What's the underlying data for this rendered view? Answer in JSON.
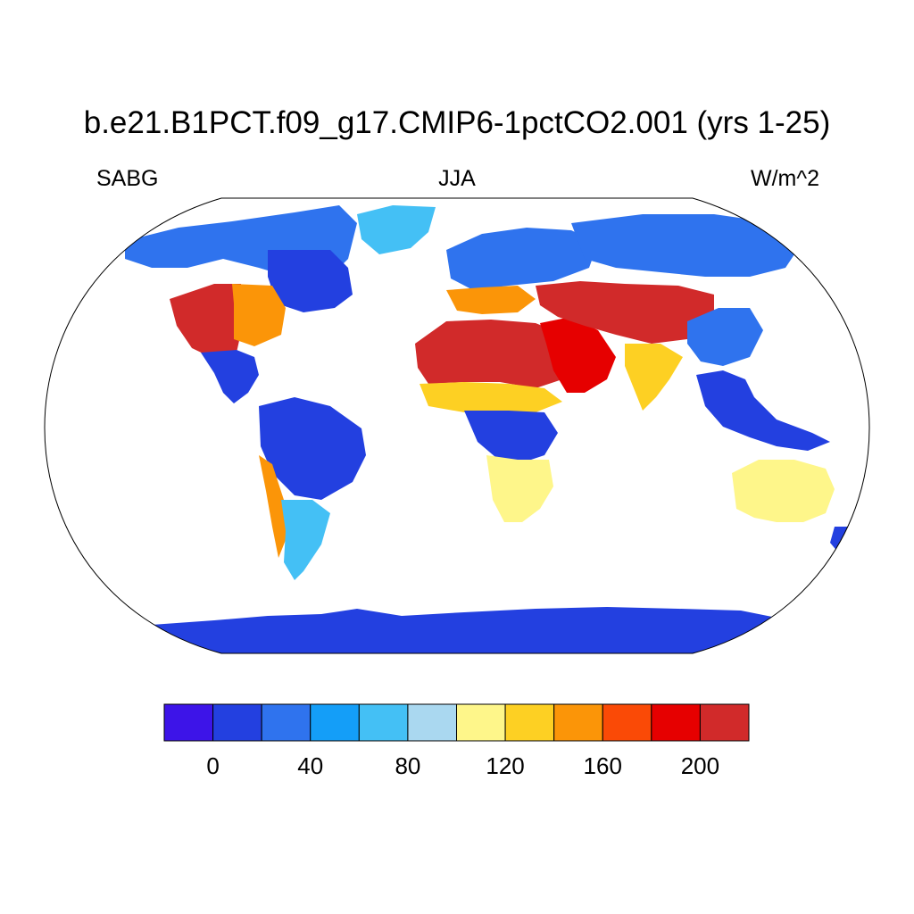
{
  "title": "b.e21.B1PCT.f09_g17.CMIP6-1pctCO2.001 (yrs 1-25)",
  "left_label": "SABG",
  "center_label": "JJA",
  "right_label": "W/m^2",
  "colorbar": {
    "colors": [
      "#3d14e8",
      "#2340e0",
      "#2f73ee",
      "#149ef8",
      "#44c0f5",
      "#aad8f0",
      "#fef68a",
      "#fdd023",
      "#fb9508",
      "#fa4a06",
      "#e60000",
      "#d12a2a"
    ],
    "boundaries": [
      -20,
      0,
      20,
      40,
      60,
      80,
      100,
      120,
      140,
      160,
      180,
      200,
      220
    ],
    "tick_labels": [
      "0",
      "40",
      "80",
      "120",
      "160",
      "200"
    ],
    "tick_values": [
      0,
      40,
      80,
      120,
      160,
      200
    ]
  },
  "map": {
    "projection": "Robinson",
    "ocean_color": "#ffffff",
    "regions": [
      {
        "name": "north-america-north",
        "level_color": "#2f73ee"
      },
      {
        "name": "us-southwest",
        "level_color": "#d12a2a"
      },
      {
        "name": "us-plains",
        "level_color": "#fb9508"
      },
      {
        "name": "canada-east",
        "level_color": "#2340e0"
      },
      {
        "name": "greenland",
        "level_color": "#44c0f5"
      },
      {
        "name": "central-america",
        "level_color": "#2340e0"
      },
      {
        "name": "south-america-amazon",
        "level_color": "#2340e0"
      },
      {
        "name": "south-america-andes",
        "level_color": "#fb9508"
      },
      {
        "name": "south-america-south",
        "level_color": "#44c0f5"
      },
      {
        "name": "europe-north",
        "level_color": "#2f73ee"
      },
      {
        "name": "europe-south",
        "level_color": "#fb9508"
      },
      {
        "name": "sahara",
        "level_color": "#d12a2a"
      },
      {
        "name": "sahel",
        "level_color": "#fdd023"
      },
      {
        "name": "central-africa",
        "level_color": "#2340e0"
      },
      {
        "name": "southern-africa",
        "level_color": "#fef68a"
      },
      {
        "name": "arabia",
        "level_color": "#e60000"
      },
      {
        "name": "central-asia",
        "level_color": "#d12a2a"
      },
      {
        "name": "siberia",
        "level_color": "#2f73ee"
      },
      {
        "name": "india",
        "level_color": "#fdd023"
      },
      {
        "name": "china-east",
        "level_color": "#2f73ee"
      },
      {
        "name": "southeast-asia",
        "level_color": "#2340e0"
      },
      {
        "name": "australia",
        "level_color": "#fef68a"
      },
      {
        "name": "new-zealand",
        "level_color": "#2340e0"
      },
      {
        "name": "antarctica",
        "level_color": "#2340e0"
      }
    ]
  }
}
